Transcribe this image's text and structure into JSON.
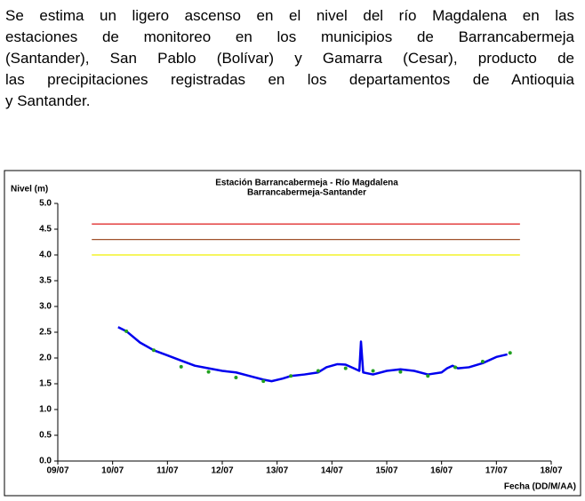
{
  "paragraph": [
    "Se estima un ligero ascenso en el nivel del río Magdalena en las",
    "estaciones de monitoreo en los municipios de Barrancabermeja",
    "(Santander), San Pablo (Bolívar) y Gamarra (Cesar), producto de",
    "las precipitaciones registradas en los departamentos de Antioquia",
    "y Santander."
  ],
  "chart_data": {
    "type": "line",
    "title": "Estación Barrancabermeja - Río Magdalena",
    "subtitle": "Barrancabermeja-Santander",
    "y_label": "Nivel (m)",
    "x_label": "Fecha (DD/M/AA)",
    "xlim": [
      9,
      18
    ],
    "xticks": [
      {
        "value": 9,
        "label": "09/07"
      },
      {
        "value": 10,
        "label": "10/07"
      },
      {
        "value": 11,
        "label": "11/07"
      },
      {
        "value": 12,
        "label": "12/07"
      },
      {
        "value": 13,
        "label": "13/07"
      },
      {
        "value": 14,
        "label": "14/07"
      },
      {
        "value": 15,
        "label": "15/07"
      },
      {
        "value": 16,
        "label": "16/07"
      },
      {
        "value": 17,
        "label": "17/07"
      },
      {
        "value": 18,
        "label": "18/07"
      }
    ],
    "ylim": [
      0,
      5
    ],
    "yticks": [
      {
        "value": 0,
        "label": "0.0"
      },
      0.5,
      {
        "value": 1,
        "label": "1.0"
      },
      1.5,
      {
        "value": 2,
        "label": "2.0"
      },
      2.5,
      {
        "value": 3,
        "label": "3.0"
      },
      3.5,
      {
        "value": 4,
        "label": "4.0"
      },
      4.5,
      {
        "value": 5,
        "label": "5.0"
      }
    ],
    "thresholds": [
      {
        "color": "#e03030",
        "value": 4.6,
        "x": [
          9.62,
          17.43
        ]
      },
      {
        "color": "#a0522d",
        "value": 4.3,
        "x": [
          9.62,
          17.43
        ]
      },
      {
        "color": "#f0f000",
        "value": 4.0,
        "x": [
          9.62,
          17.43
        ]
      }
    ],
    "series": [
      {
        "color": "#0000ee",
        "kind": "line",
        "x": [
          10.1,
          10.25,
          10.5,
          10.75,
          11,
          11.25,
          11.5,
          11.75,
          12,
          12.25,
          12.5,
          12.75,
          12.9,
          13.1,
          13.25,
          13.5,
          13.75,
          13.9,
          14.1,
          14.25,
          14.4,
          14.5,
          14.53,
          14.57,
          14.75,
          15,
          15.25,
          15.5,
          15.75,
          16,
          16.1,
          16.2,
          16.3,
          16.5,
          16.75,
          17,
          17.2
        ],
        "values": [
          2.6,
          2.52,
          2.3,
          2.15,
          2.05,
          1.95,
          1.85,
          1.8,
          1.75,
          1.72,
          1.65,
          1.58,
          1.55,
          1.6,
          1.65,
          1.68,
          1.72,
          1.82,
          1.88,
          1.87,
          1.8,
          1.75,
          2.32,
          1.72,
          1.68,
          1.75,
          1.78,
          1.75,
          1.68,
          1.72,
          1.8,
          1.85,
          1.8,
          1.82,
          1.9,
          2.02,
          2.07
        ]
      },
      {
        "color": "#20a020",
        "kind": "points",
        "x": [
          10.25,
          10.75,
          11.25,
          11.75,
          12.25,
          12.75,
          13.25,
          13.75,
          14.25,
          14.75,
          15.25,
          15.75,
          16.25,
          16.75,
          17.25
        ],
        "values": [
          2.52,
          2.15,
          1.83,
          1.73,
          1.62,
          1.55,
          1.65,
          1.75,
          1.8,
          1.75,
          1.73,
          1.65,
          1.82,
          1.93,
          2.1
        ]
      }
    ]
  }
}
